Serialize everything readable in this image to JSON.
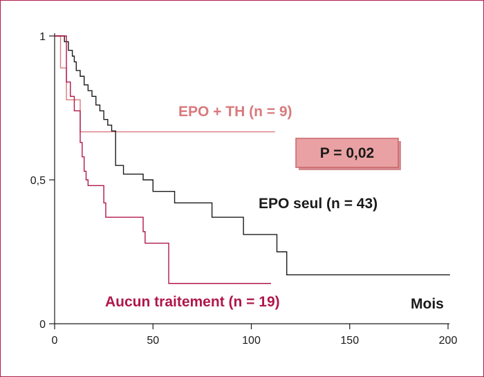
{
  "chart_data": {
    "type": "line",
    "step": true,
    "xlabel": "Mois",
    "ylabel": "",
    "xlim": [
      0,
      200
    ],
    "ylim": [
      0,
      1
    ],
    "xticks": [
      "0",
      "50",
      "100",
      "150",
      "200"
    ],
    "yticks": [
      "0",
      "0,5",
      "1"
    ],
    "grid": false,
    "annotation": "P = 0,02",
    "colors": {
      "epo_th": "#d9797c",
      "epo_seul": "#1a1a1a",
      "aucun": "#b0164a",
      "pbox_fill": "#e9a1a3",
      "pbox_border": "#c96669",
      "frame": "#b01e4a"
    },
    "series": [
      {
        "name": "EPO + TH (n = 9)",
        "key": "epo_th",
        "x": [
          0,
          3,
          6,
          12,
          13,
          112
        ],
        "y": [
          1.0,
          0.889,
          0.778,
          0.778,
          0.667,
          0.667
        ]
      },
      {
        "name": "EPO seul (n = 43)",
        "key": "epo_seul",
        "x": [
          0,
          5,
          7,
          9,
          10,
          11,
          13,
          15,
          17,
          19,
          21,
          23,
          25,
          27,
          29,
          31,
          35,
          45,
          50,
          61,
          80,
          96,
          113,
          118,
          201
        ],
        "y": [
          1.0,
          0.98,
          0.95,
          0.93,
          0.91,
          0.88,
          0.86,
          0.83,
          0.81,
          0.79,
          0.76,
          0.74,
          0.71,
          0.69,
          0.67,
          0.55,
          0.52,
          0.5,
          0.46,
          0.42,
          0.37,
          0.31,
          0.25,
          0.17,
          0.17
        ]
      },
      {
        "name": "Aucun traitement  (n = 19)",
        "key": "aucun",
        "x": [
          0,
          6,
          8,
          10,
          13,
          14,
          15,
          16,
          17,
          25,
          26,
          45,
          46,
          58,
          110
        ],
        "y": [
          1.0,
          0.84,
          0.79,
          0.74,
          0.63,
          0.58,
          0.53,
          0.5,
          0.48,
          0.42,
          0.37,
          0.32,
          0.28,
          0.14,
          0.14
        ]
      }
    ]
  }
}
